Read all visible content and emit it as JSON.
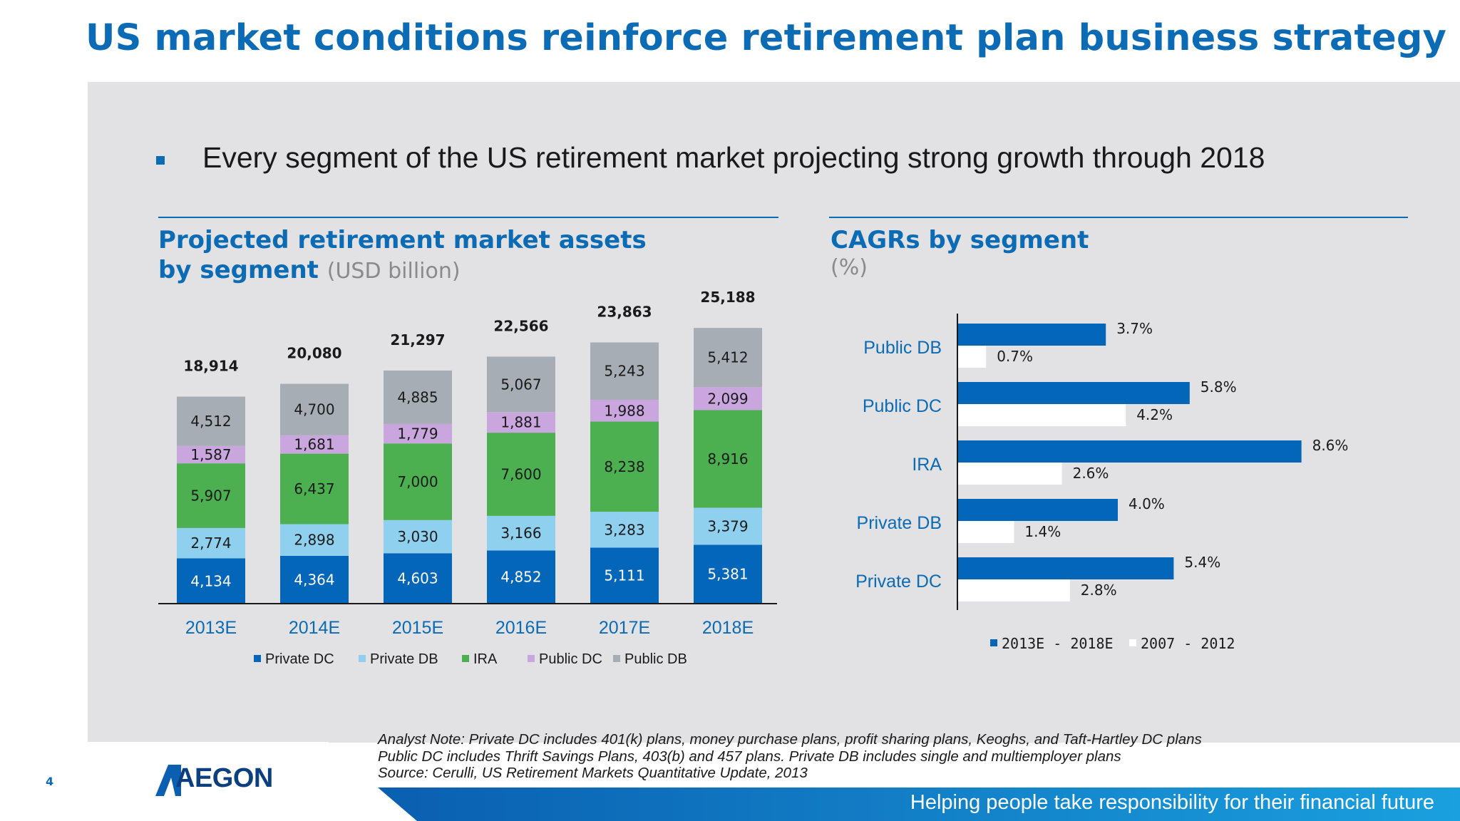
{
  "slide": {
    "title": "US market conditions reinforce retirement plan business strategy",
    "bullet": "Every segment of the US retirement market projecting strong growth through 2018",
    "page_number": "4",
    "logo_text": "AEGON",
    "tagline": "Helping people take responsibility for their financial future",
    "notes": [
      "Analyst Note: Private DC includes 401(k) plans, money purchase plans, profit sharing plans, Keoghs, and Taft-Hartley DC plans",
      "Public DC includes Thrift Savings Plans, 403(b) and 457 plans. Private DB includes single and multiemployer plans",
      "Source: Cerulli, US Retirement Markets Quantitative Update, 2013"
    ]
  },
  "left_panel": {
    "title_line1": "Projected retirement market assets",
    "title_line2": "by segment",
    "unit": "(USD billion)"
  },
  "right_panel": {
    "title": "CAGRs by segment",
    "unit": "(%)"
  },
  "colors": {
    "brand_blue": "#0b6bb5",
    "private_dc": "#0466b8",
    "private_db": "#8fd0ee",
    "ira": "#4caf50",
    "public_dc": "#c9a6dd",
    "public_db": "#a7adb4",
    "cagr_recent": "#0466b8",
    "cagr_hist": "#ffffff"
  },
  "chart_data": [
    {
      "type": "bar",
      "stacked": true,
      "categories": [
        "2013E",
        "2014E",
        "2015E",
        "2016E",
        "2017E",
        "2018E"
      ],
      "series": [
        {
          "name": "Private DC",
          "values": [
            4134,
            4364,
            4603,
            4852,
            5111,
            5381
          ]
        },
        {
          "name": "Private DB",
          "values": [
            2774,
            2898,
            3030,
            3166,
            3283,
            3379
          ]
        },
        {
          "name": "IRA",
          "values": [
            5907,
            6437,
            7000,
            7600,
            8238,
            8916
          ]
        },
        {
          "name": "Public DC",
          "values": [
            1587,
            1681,
            1779,
            1881,
            1988,
            2099
          ]
        },
        {
          "name": "Public DB",
          "values": [
            4512,
            4700,
            4885,
            5067,
            5243,
            5412
          ]
        }
      ],
      "value_labels": [
        [
          "4,134",
          "4,364",
          "4,603",
          "4,852",
          "5,111",
          "5,381"
        ],
        [
          "2,774",
          "2,898",
          "3,030",
          "3,166",
          "3,283",
          "3,379"
        ],
        [
          "5,907",
          "6,437",
          "7,000",
          "7,600",
          "8,238",
          "8,916"
        ],
        [
          "1,587",
          "1,681",
          "1,779",
          "1,881",
          "1,988",
          "2,099"
        ],
        [
          "4,512",
          "4,700",
          "4,885",
          "5,067",
          "5,243",
          "5,412"
        ]
      ],
      "totals": [
        18914,
        20080,
        21297,
        22566,
        23863,
        25188
      ],
      "total_labels": [
        "18,914",
        "20,080",
        "21,297",
        "22,566",
        "23,863",
        "25,188"
      ],
      "legend": [
        "Private DC",
        "Private DB",
        "IRA",
        "Public DC",
        "Public DB"
      ],
      "legend_position": "bottom",
      "ylim": [
        0,
        26000
      ],
      "grid": false
    },
    {
      "type": "bar",
      "orientation": "horizontal",
      "categories": [
        "Public DB",
        "Public DC",
        "IRA",
        "Private DB",
        "Private DC"
      ],
      "series": [
        {
          "name": "2013E - 2018E",
          "values": [
            3.7,
            5.8,
            8.6,
            4.0,
            5.4
          ]
        },
        {
          "name": "2007 - 2012",
          "values": [
            0.7,
            4.2,
            2.6,
            1.4,
            2.8
          ]
        }
      ],
      "value_labels": [
        [
          "3.7%",
          "5.8%",
          "8.6%",
          "4.0%",
          "5.4%"
        ],
        [
          "0.7%",
          "4.2%",
          "2.6%",
          "1.4%",
          "2.8%"
        ]
      ],
      "legend": [
        "2013E - 2018E",
        "2007 - 2012"
      ],
      "legend_position": "bottom",
      "xlim": [
        0,
        10
      ],
      "grid": false
    }
  ]
}
